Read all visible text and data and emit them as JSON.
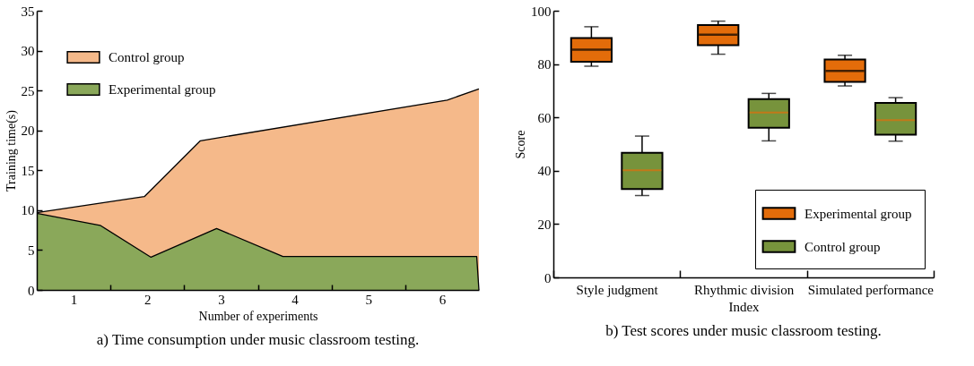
{
  "chart_data": [
    {
      "type": "area",
      "title": "a) Time consumption under music classroom testing.",
      "xlabel": "Number of experiments",
      "ylabel": "Training time(s)",
      "xlim": [
        0.5,
        6.5
      ],
      "xticks": [
        1,
        {
          "value": 1.5,
          "label": null
        },
        2,
        {
          "value": 2.5,
          "label": null
        },
        3,
        {
          "value": 3.5,
          "label": null
        },
        4,
        {
          "value": 4.5,
          "label": null
        },
        5,
        {
          "value": 5.5,
          "label": null
        },
        6
      ],
      "ylim": [
        0,
        35
      ],
      "yticks": [
        0,
        5,
        10,
        15,
        20,
        25,
        30,
        35
      ],
      "legend": "top left",
      "series": [
        {
          "name": "Control group",
          "color": "#f5b98a",
          "x": [
            0.5,
            1.96,
            2.72,
            6.07,
            6.5
          ],
          "values": [
            9.7,
            11.7,
            18.7,
            23.8,
            25.2
          ]
        },
        {
          "name": "Experimental group",
          "color": "#8aa85a",
          "x": [
            0.5,
            1.36,
            2.05,
            2.94,
            3.84,
            6.47,
            6.5
          ],
          "values": [
            9.6,
            8.1,
            4.1,
            7.7,
            4.2,
            4.2,
            0
          ]
        }
      ]
    },
    {
      "type": "box",
      "title": "b) Test scores under music classroom testing.",
      "xlabel": "Index",
      "ylabel": "Score",
      "categories": [
        "Style judgment",
        "Rhythmic division",
        "Simulated performance"
      ],
      "ylim": [
        0,
        100
      ],
      "yticks": [
        0,
        20,
        40,
        60,
        80,
        100
      ],
      "legend": "bottom right",
      "series": [
        {
          "name": "Experimental group",
          "color": "#e36c0a",
          "boxes": [
            {
              "low": 79.2,
              "q1": 80.9,
              "median": 85.4,
              "q3": 89.8,
              "high": 94.0
            },
            {
              "low": 83.7,
              "q1": 87.1,
              "median": 91.0,
              "q3": 94.6,
              "high": 96.1
            },
            {
              "low": 71.8,
              "q1": 73.3,
              "median": 77.4,
              "q3": 81.7,
              "high": 83.3
            }
          ]
        },
        {
          "name": "Control group",
          "color": "#77933c",
          "boxes": [
            {
              "low": 30.7,
              "q1": 33.1,
              "median": 40.2,
              "q3": 46.7,
              "high": 53.0
            },
            {
              "low": 51.2,
              "q1": 56.1,
              "median": 61.8,
              "q3": 66.9,
              "high": 69.0
            },
            {
              "low": 51.1,
              "q1": 53.5,
              "median": 59.0,
              "q3": 65.4,
              "high": 67.4
            }
          ]
        }
      ]
    }
  ]
}
